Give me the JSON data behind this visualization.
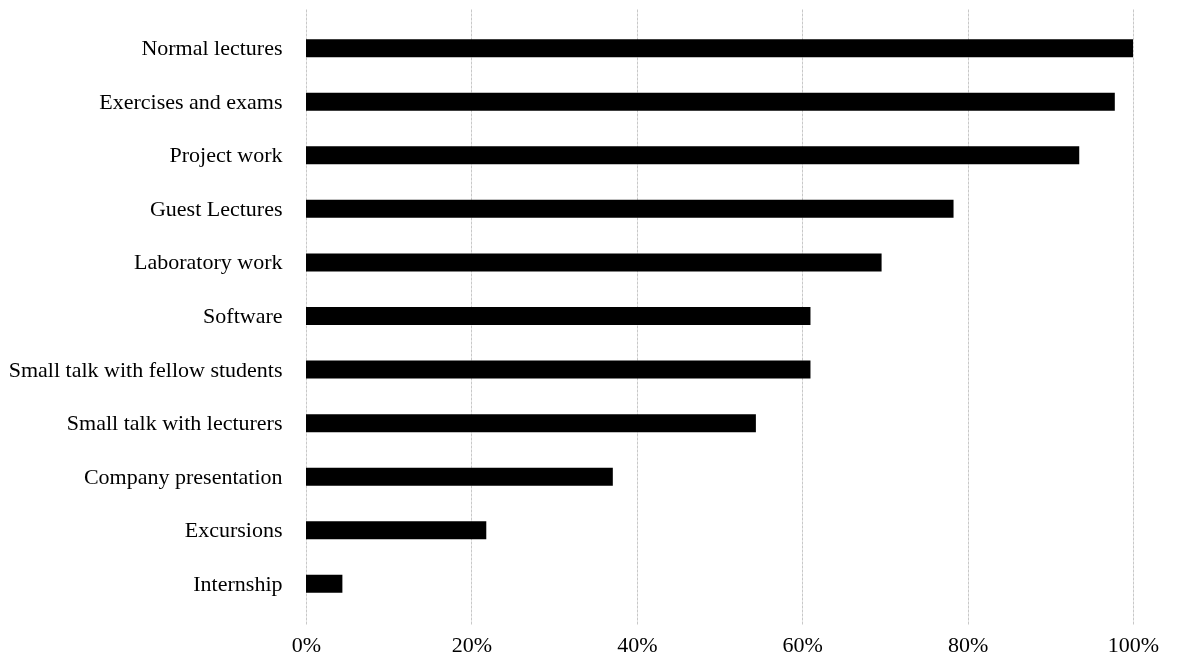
{
  "chart_data": {
    "type": "bar",
    "orientation": "horizontal",
    "categories": [
      "Normal lectures",
      "Exercises and exams",
      "Project work",
      "Guest Lectures",
      "Laboratory work",
      "Software",
      "Small talk with fellow students",
      "Small talk with lecturers",
      "Company presentation",
      "Excursions",
      "Internship"
    ],
    "values": [
      100,
      97.8,
      93.5,
      78.3,
      69.6,
      61.0,
      61.0,
      54.4,
      37.1,
      21.8,
      4.4
    ],
    "color": "#000000",
    "xlim": [
      0,
      100
    ],
    "xticks": [
      {
        "value": 0,
        "label": "0%"
      },
      {
        "value": 20,
        "label": "20%"
      },
      {
        "value": 40,
        "label": "40%"
      },
      {
        "value": 60,
        "label": "60%"
      },
      {
        "value": 80,
        "label": "80%"
      },
      {
        "value": 100,
        "label": "100%"
      }
    ],
    "grid": "x"
  }
}
